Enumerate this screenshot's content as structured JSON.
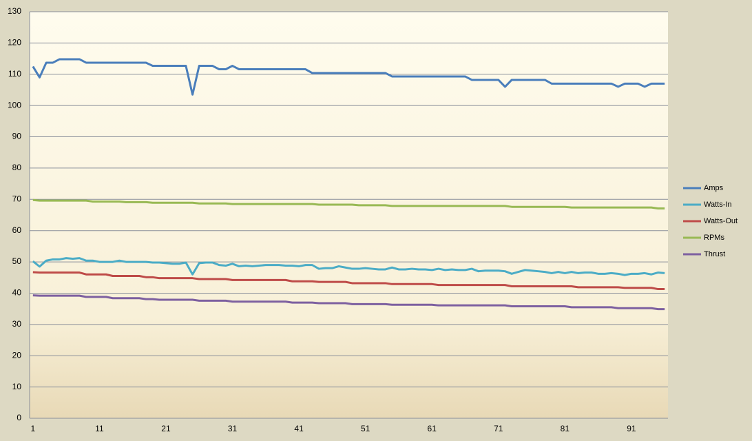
{
  "chart_data": {
    "type": "line",
    "categories": [
      1,
      null,
      null,
      null,
      null,
      null,
      null,
      null,
      null,
      null,
      11,
      null,
      null,
      null,
      null,
      null,
      null,
      null,
      null,
      null,
      21,
      null,
      null,
      null,
      null,
      null,
      null,
      null,
      null,
      null,
      31,
      null,
      null,
      null,
      null,
      null,
      null,
      null,
      null,
      null,
      41,
      null,
      null,
      null,
      null,
      null,
      null,
      null,
      null,
      null,
      51,
      null,
      null,
      null,
      null,
      null,
      null,
      null,
      null,
      null,
      61,
      null,
      null,
      null,
      null,
      null,
      null,
      null,
      null,
      null,
      71,
      null,
      null,
      null,
      null,
      null,
      null,
      null,
      null,
      null,
      81,
      null,
      null,
      null,
      null,
      null,
      null,
      null,
      null,
      null,
      91,
      null,
      null,
      null,
      null,
      null
    ],
    "ylim": [
      0,
      130
    ],
    "yticks": [
      0,
      10,
      20,
      30,
      40,
      50,
      60,
      70,
      80,
      90,
      100,
      110,
      120,
      130
    ],
    "grid": true,
    "legend": "right",
    "series": [
      {
        "name": "Amps",
        "color": "#4a7ebb",
        "values": [
          112.5,
          109,
          113.7,
          113.7,
          114.8,
          114.8,
          114.8,
          114.8,
          113.7,
          113.7,
          113.7,
          113.7,
          113.7,
          113.7,
          113.7,
          113.7,
          113.7,
          113.7,
          112.7,
          112.7,
          112.7,
          112.7,
          112.7,
          112.7,
          103.5,
          112.7,
          112.7,
          112.7,
          111.6,
          111.6,
          112.7,
          111.6,
          111.6,
          111.6,
          111.6,
          111.6,
          111.6,
          111.6,
          111.6,
          111.6,
          111.6,
          111.6,
          110.4,
          110.4,
          110.4,
          110.4,
          110.4,
          110.4,
          110.4,
          110.4,
          110.4,
          110.4,
          110.4,
          110.4,
          109.3,
          109.3,
          109.3,
          109.3,
          109.3,
          109.3,
          109.3,
          109.3,
          109.3,
          109.3,
          109.3,
          109.3,
          108.2,
          108.2,
          108.2,
          108.2,
          108.2,
          106,
          108.2,
          108.2,
          108.2,
          108.2,
          108.2,
          108.2,
          107,
          107,
          107,
          107,
          107,
          107,
          107,
          107,
          107,
          107,
          106,
          107,
          107,
          107,
          106,
          107,
          107,
          107
        ]
      },
      {
        "name": "Watts-In",
        "color": "#4bacc6",
        "values": [
          50.2,
          48.5,
          50.4,
          50.8,
          50.8,
          51.2,
          51.0,
          51.2,
          50.4,
          50.4,
          50.0,
          50.0,
          50.0,
          50.4,
          50.0,
          50.0,
          50.0,
          50.0,
          49.8,
          49.8,
          49.6,
          49.4,
          49.4,
          49.8,
          46.0,
          49.6,
          49.8,
          49.8,
          49.0,
          48.8,
          49.4,
          48.6,
          48.8,
          48.6,
          48.8,
          49.0,
          49.0,
          49.0,
          48.8,
          48.8,
          48.6,
          49.0,
          49.0,
          47.8,
          48.0,
          48.0,
          48.6,
          48.2,
          47.8,
          47.8,
          48.0,
          47.8,
          47.6,
          47.6,
          48.2,
          47.6,
          47.6,
          47.8,
          47.6,
          47.6,
          47.4,
          47.8,
          47.4,
          47.6,
          47.4,
          47.4,
          47.8,
          47.0,
          47.2,
          47.2,
          47.2,
          47.0,
          46.2,
          46.8,
          47.4,
          47.2,
          47.0,
          46.8,
          46.4,
          46.8,
          46.4,
          46.8,
          46.4,
          46.6,
          46.6,
          46.2,
          46.2,
          46.4,
          46.2,
          45.8,
          46.2,
          46.2,
          46.4,
          46.0,
          46.6,
          46.4
        ]
      },
      {
        "name": "Watts-Out",
        "color": "#be4b48",
        "values": [
          46.7,
          46.6,
          46.6,
          46.6,
          46.6,
          46.6,
          46.6,
          46.6,
          46.0,
          46.0,
          46.0,
          46.0,
          45.5,
          45.5,
          45.5,
          45.5,
          45.5,
          45.1,
          45.1,
          44.8,
          44.8,
          44.8,
          44.8,
          44.8,
          44.8,
          44.5,
          44.5,
          44.5,
          44.5,
          44.5,
          44.2,
          44.2,
          44.2,
          44.2,
          44.2,
          44.2,
          44.2,
          44.2,
          44.2,
          43.8,
          43.8,
          43.8,
          43.8,
          43.6,
          43.6,
          43.6,
          43.6,
          43.6,
          43.2,
          43.2,
          43.2,
          43.2,
          43.2,
          43.2,
          42.9,
          42.9,
          42.9,
          42.9,
          42.9,
          42.9,
          42.9,
          42.6,
          42.6,
          42.6,
          42.6,
          42.6,
          42.6,
          42.6,
          42.6,
          42.6,
          42.6,
          42.6,
          42.2,
          42.2,
          42.2,
          42.2,
          42.2,
          42.2,
          42.2,
          42.2,
          42.2,
          42.2,
          41.9,
          41.9,
          41.9,
          41.9,
          41.9,
          41.9,
          41.9,
          41.7,
          41.7,
          41.7,
          41.7,
          41.7,
          41.3,
          41.3
        ]
      },
      {
        "name": "RPMs",
        "color": "#98b954",
        "values": [
          69.8,
          69.6,
          69.6,
          69.6,
          69.6,
          69.6,
          69.6,
          69.6,
          69.6,
          69.3,
          69.3,
          69.3,
          69.3,
          69.3,
          69.1,
          69.1,
          69.1,
          69.1,
          68.9,
          68.9,
          68.9,
          68.9,
          68.9,
          68.9,
          68.9,
          68.7,
          68.7,
          68.7,
          68.7,
          68.7,
          68.5,
          68.5,
          68.5,
          68.5,
          68.5,
          68.5,
          68.5,
          68.5,
          68.5,
          68.5,
          68.5,
          68.5,
          68.5,
          68.3,
          68.3,
          68.3,
          68.3,
          68.3,
          68.3,
          68.1,
          68.1,
          68.1,
          68.1,
          68.1,
          67.9,
          67.9,
          67.9,
          67.9,
          67.9,
          67.9,
          67.9,
          67.9,
          67.9,
          67.9,
          67.9,
          67.9,
          67.9,
          67.9,
          67.9,
          67.9,
          67.9,
          67.9,
          67.6,
          67.6,
          67.6,
          67.6,
          67.6,
          67.6,
          67.6,
          67.6,
          67.6,
          67.4,
          67.4,
          67.4,
          67.4,
          67.4,
          67.4,
          67.4,
          67.4,
          67.4,
          67.4,
          67.4,
          67.4,
          67.4,
          67.1,
          67.1
        ]
      },
      {
        "name": "Thrust",
        "color": "#7d60a0",
        "values": [
          39.3,
          39.2,
          39.2,
          39.2,
          39.2,
          39.2,
          39.2,
          39.2,
          38.8,
          38.8,
          38.8,
          38.8,
          38.4,
          38.4,
          38.4,
          38.4,
          38.4,
          38.1,
          38.1,
          37.9,
          37.9,
          37.9,
          37.9,
          37.9,
          37.9,
          37.6,
          37.6,
          37.6,
          37.6,
          37.6,
          37.3,
          37.3,
          37.3,
          37.3,
          37.3,
          37.3,
          37.3,
          37.3,
          37.3,
          37.0,
          37.0,
          37.0,
          37.0,
          36.8,
          36.8,
          36.8,
          36.8,
          36.8,
          36.5,
          36.5,
          36.5,
          36.5,
          36.5,
          36.5,
          36.3,
          36.3,
          36.3,
          36.3,
          36.3,
          36.3,
          36.3,
          36.1,
          36.1,
          36.1,
          36.1,
          36.1,
          36.1,
          36.1,
          36.1,
          36.1,
          36.1,
          36.1,
          35.8,
          35.8,
          35.8,
          35.8,
          35.8,
          35.8,
          35.8,
          35.8,
          35.8,
          35.5,
          35.5,
          35.5,
          35.5,
          35.5,
          35.5,
          35.5,
          35.2,
          35.2,
          35.2,
          35.2,
          35.2,
          35.2,
          34.9,
          34.9
        ]
      }
    ]
  }
}
